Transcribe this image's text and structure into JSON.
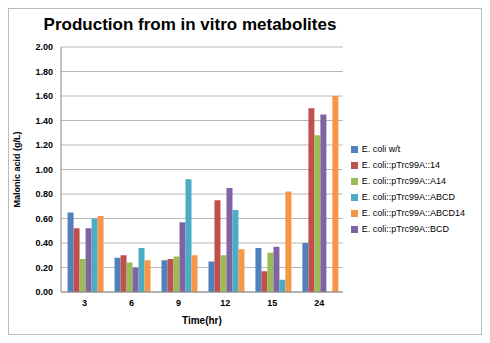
{
  "chart_data": {
    "type": "bar",
    "title": "Production from in vitro metabolites",
    "x_label": "Time(hr)",
    "y_label": "Malonic acid (g/L)",
    "categories": [
      "3",
      "6",
      "9",
      "12",
      "15",
      "24"
    ],
    "series": [
      {
        "name": "E. coli w/t",
        "color": "#4f81bd",
        "values": [
          0.65,
          0.28,
          0.26,
          0.25,
          0.36,
          0.4
        ]
      },
      {
        "name": "E. coli::pTrc99A::14",
        "color": "#c0504d",
        "values": [
          0.52,
          0.3,
          0.27,
          0.75,
          0.17,
          1.5
        ]
      },
      {
        "name": "E. coli::pTrc99A::A14",
        "color": "#9bbb59",
        "values": [
          0.27,
          0.24,
          0.29,
          0.3,
          0.32,
          1.28
        ]
      },
      {
        "name": "E. coli::pTrc99A::BCD",
        "color": "#8064a2",
        "values": [
          0.52,
          0.2,
          0.57,
          0.85,
          0.37,
          1.45
        ]
      },
      {
        "name": "E. coli::pTrc99A::ABCD",
        "color": "#4bacc6",
        "values": [
          0.6,
          0.36,
          0.92,
          0.67,
          0.1,
          null
        ]
      },
      {
        "name": "E. coli::pTrc99A::ABCD14",
        "color": "#f79646",
        "values": [
          0.62,
          0.26,
          0.3,
          0.35,
          0.82,
          1.6
        ]
      }
    ],
    "ylim": [
      0,
      2
    ],
    "yticks": [
      {
        "value": 0,
        "label": "0.00"
      },
      {
        "value": 0.2,
        "label": "0.20"
      },
      {
        "value": 0.4,
        "label": "0.40"
      },
      {
        "value": 0.6,
        "label": "0.60"
      },
      {
        "value": 0.8,
        "label": "0.80"
      },
      {
        "value": 1,
        "label": "1.00"
      },
      {
        "value": 1.2,
        "label": "1.20"
      },
      {
        "value": 1.4,
        "label": "1.40"
      },
      {
        "value": 1.6,
        "label": "1.60"
      },
      {
        "value": 1.8,
        "label": "1.80"
      },
      {
        "value": 2,
        "label": "2.00"
      }
    ],
    "grid": true,
    "legend": "right"
  }
}
